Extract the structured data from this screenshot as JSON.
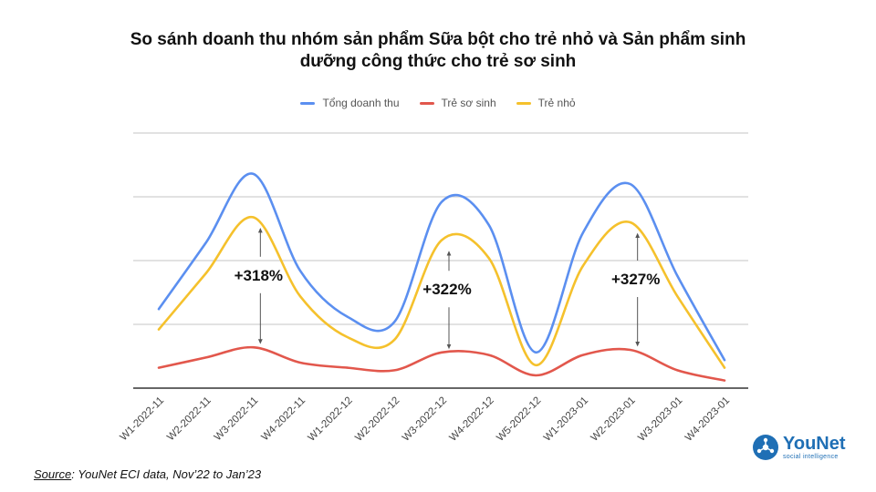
{
  "title_lines": [
    "So sánh doanh thu nhóm sản phẩm Sữa bột cho trẻ nhỏ và Sản phẩm sinh",
    "dưỡng công thức cho trẻ sơ sinh"
  ],
  "source": {
    "label": "Source",
    "text": ": YouNet ECI data, Nov’22 to Jan’23"
  },
  "logo": {
    "name": "YouNet",
    "tagline": "social intelligence"
  },
  "colors": {
    "total": "#5b8ff0",
    "newborn": "#e2574c",
    "child": "#f5c12c",
    "grid": "#d9d9d9",
    "axis": "#333333"
  },
  "chart_data": {
    "type": "line",
    "title": "So sánh doanh thu nhóm sản phẩm Sữa bột cho trẻ nhỏ và Sản phẩm sinh dưỡng công thức cho trẻ sơ sinh",
    "xlabel": "",
    "ylabel": "",
    "ylim": [
      0,
      100
    ],
    "grid": true,
    "legend_position": "top-center",
    "categories": [
      "W1-2022-11",
      "W2-2022-11",
      "W3-2022-11",
      "W4-2022-11",
      "W1-2022-12",
      "W2-2022-12",
      "W3-2022-12",
      "W4-2022-12",
      "W5-2022-12",
      "W1-2023-01",
      "W2-2023-01",
      "W3-2023-01",
      "W4-2023-01"
    ],
    "series": [
      {
        "name": "Tổng doanh thu",
        "color_key": "total",
        "values": [
          31,
          57,
          84,
          46,
          28,
          26,
          73,
          64,
          14,
          61,
          80,
          44,
          11
        ]
      },
      {
        "name": "Trẻ sơ sinh",
        "color_key": "newborn",
        "values": [
          8,
          12,
          16,
          10,
          8,
          7,
          14,
          13,
          5,
          13,
          15,
          7,
          3
        ]
      },
      {
        "name": "Trẻ nhỏ",
        "color_key": "child",
        "values": [
          23,
          45,
          67,
          36,
          20,
          19,
          58,
          51,
          9,
          48,
          65,
          36,
          8
        ]
      }
    ],
    "annotations": [
      {
        "text": "+318%",
        "category_index": 2
      },
      {
        "text": "+322%",
        "category_index": 6
      },
      {
        "text": "+327%",
        "category_index": 10
      }
    ]
  }
}
